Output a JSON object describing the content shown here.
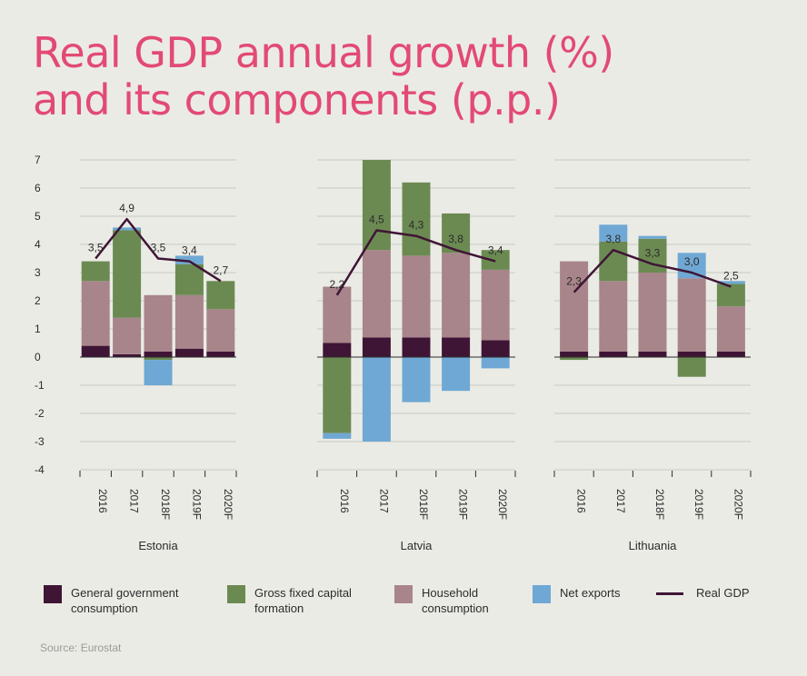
{
  "title_line1": "Real GDP annual growth (%)",
  "title_line2": "and its components (p.p.)",
  "source": "Source: Eurostat",
  "colors": {
    "gov": "#3f1535",
    "gfcf": "#6b8a52",
    "household": "#a8858a",
    "netexports": "#6fa8d4",
    "gdp": "#3f1535"
  },
  "legend": [
    {
      "key": "gov",
      "label": "General government\nconsumption",
      "kind": "swatch"
    },
    {
      "key": "gfcf",
      "label": "Gross fixed capital\nformation",
      "kind": "swatch"
    },
    {
      "key": "household",
      "label": "Household\nconsumption",
      "kind": "swatch"
    },
    {
      "key": "netexports",
      "label": "Net exports",
      "kind": "swatch"
    },
    {
      "key": "gdp",
      "label": "Real GDP",
      "kind": "line"
    }
  ],
  "chart_data": {
    "type": "bar",
    "stacked": true,
    "ylim": [
      -4,
      7
    ],
    "yticks": [
      "-4",
      "-3",
      "-2",
      "-1",
      "0",
      "1",
      "2",
      "3",
      "4",
      "5",
      "6",
      "7"
    ],
    "grid": true,
    "categories": [
      "2016",
      "2017",
      "2018F",
      "2019F",
      "2020F"
    ],
    "panels": [
      {
        "name": "Estonia",
        "series": [
          {
            "name": "General government consumption",
            "key": "gov",
            "values": [
              0.4,
              0.1,
              0.2,
              0.3,
              0.2
            ]
          },
          {
            "name": "Household consumption",
            "key": "household",
            "values": [
              2.3,
              1.3,
              2.0,
              1.9,
              1.5
            ]
          },
          {
            "name": "Gross fixed capital formation",
            "key": "gfcf",
            "values": [
              0.7,
              3.1,
              -0.1,
              1.1,
              1.0
            ]
          },
          {
            "name": "Net exports",
            "key": "netexports",
            "values": [
              0.0,
              0.1,
              -0.9,
              0.3,
              0.0
            ]
          }
        ],
        "gdp": [
          3.5,
          4.9,
          3.5,
          3.4,
          2.7
        ],
        "gdp_labels": [
          "3,5",
          "4,9",
          "3,5",
          "3,4",
          "2,7"
        ]
      },
      {
        "name": "Latvia",
        "series": [
          {
            "name": "General government consumption",
            "key": "gov",
            "values": [
              0.5,
              0.7,
              0.7,
              0.7,
              0.6
            ]
          },
          {
            "name": "Household consumption",
            "key": "household",
            "values": [
              2.0,
              3.1,
              2.9,
              3.0,
              2.5
            ]
          },
          {
            "name": "Gross fixed capital formation",
            "key": "gfcf",
            "values": [
              -2.7,
              3.2,
              2.6,
              1.4,
              0.7
            ]
          },
          {
            "name": "Net exports",
            "key": "netexports",
            "values": [
              -0.2,
              -3.0,
              -1.6,
              -1.2,
              -0.4
            ]
          }
        ],
        "gdp": [
          2.2,
          4.5,
          4.3,
          3.8,
          3.4
        ],
        "gdp_labels": [
          "2,2",
          "4,5",
          "4,3",
          "3,8",
          "3,4"
        ]
      },
      {
        "name": "Lithuania",
        "series": [
          {
            "name": "General government consumption",
            "key": "gov",
            "values": [
              0.2,
              0.2,
              0.2,
              0.2,
              0.2
            ]
          },
          {
            "name": "Household consumption",
            "key": "household",
            "values": [
              3.2,
              2.5,
              2.8,
              2.6,
              1.6
            ]
          },
          {
            "name": "Gross fixed capital formation",
            "key": "gfcf",
            "values": [
              -0.1,
              1.4,
              1.2,
              -0.7,
              0.8
            ]
          },
          {
            "name": "Net exports",
            "key": "netexports",
            "values": [
              0.0,
              0.6,
              0.1,
              0.9,
              0.1
            ]
          }
        ],
        "gdp": [
          2.3,
          3.8,
          3.3,
          3.0,
          2.5
        ],
        "gdp_labels": [
          "2,3",
          "3,8",
          "3,3",
          "3,0",
          "2,5"
        ]
      }
    ]
  }
}
